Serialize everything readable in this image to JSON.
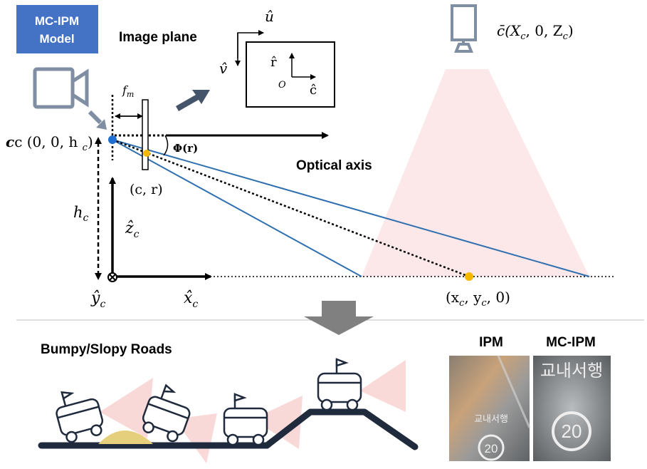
{
  "badge": {
    "line1": "MC-IPM",
    "line2": "Model",
    "color": "#4472c4"
  },
  "labels": {
    "image_plane": "Image plane",
    "u_hat": "û",
    "v_hat": "v̂",
    "r_hat": "r̂",
    "c_hat": "ĉ",
    "origin": "O",
    "f_m_base": "f",
    "f_m_sub": "m",
    "camera_point": "c (0, 0, h",
    "camera_point_sub": "c",
    "camera_point_end": ")",
    "virtual_point": "c̄(X",
    "virtual_point_sub": "c",
    "virtual_point_mid": ", 0, Z",
    "virtual_point_sub2": "c",
    "virtual_point_end": ")",
    "phi": "Φ(r)",
    "optical_axis": "Optical axis",
    "pixel": "(c, r)",
    "h_c": "h",
    "h_c_sub": "c",
    "z_hat": "ẑ",
    "z_hat_sub": "c",
    "y_hat": "ŷ",
    "y_hat_sub": "c",
    "x_hat": "x̂",
    "x_hat_sub": "c",
    "ground_point": "(x",
    "ground_point_sub1": "c",
    "ground_point_mid": ", y",
    "ground_point_sub2": "c",
    "ground_point_end": ", 0)",
    "bumpy_roads": "Bumpy/Slopy Roads",
    "ipm": "IPM",
    "mc_ipm": "MC-IPM",
    "road_text": "교내서행",
    "speed_limit": "20"
  },
  "colors": {
    "ray_blue": "#2e6fb0",
    "dot_blue": "#1f6fd1",
    "dot_yellow": "#f5b800",
    "frustum": "#f9d6d6",
    "road": "#1f2a3c",
    "icon_gray": "#7f8ea3",
    "bump": "#e6cf7c"
  },
  "icons": {
    "camera": "camera-icon",
    "monitor": "monitor-icon",
    "arrow_right": "arrow-right-icon",
    "arrow_down": "arrow-down-icon",
    "robot": "delivery-robot-icon"
  }
}
